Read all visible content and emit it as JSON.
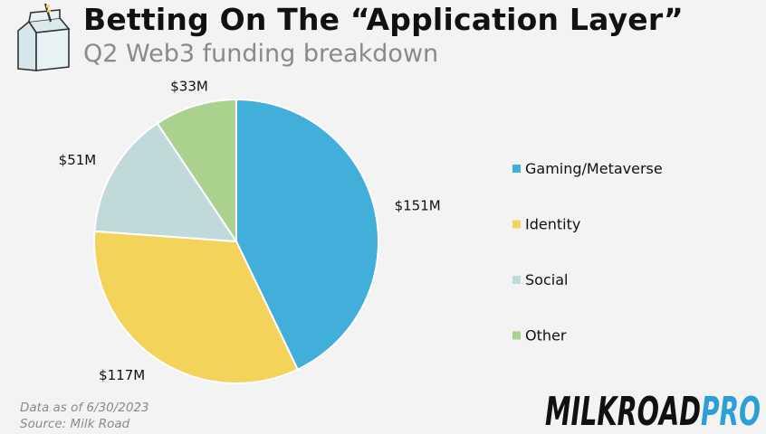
{
  "header": {
    "title": "Betting On The “Application Layer”",
    "subtitle": "Q2 Web3 funding breakdown"
  },
  "footer": {
    "date_note": "Data as of 6/30/2023",
    "source_note": "Source: Milk Road",
    "brand_main": "MILKROAD",
    "brand_suffix": "PRO"
  },
  "icons": {
    "logo": "milk-carton-icon"
  },
  "colors": {
    "background": "#f3f3f3",
    "gaming": "#42aeda",
    "identity": "#f4d35a",
    "social": "#c0dadc",
    "other": "#abd18f",
    "brand_pro": "#2b9fd6"
  },
  "chart_data": {
    "type": "pie",
    "categories": [
      "Gaming/Metaverse",
      "Identity",
      "Social",
      "Other"
    ],
    "values": [
      151,
      117,
      51,
      33
    ],
    "labels": [
      "$151M",
      "$117M",
      "$51M",
      "$33M"
    ],
    "colors": [
      "#42aeda",
      "#f4d35a",
      "#c0dadc",
      "#abd18f"
    ],
    "start": "top",
    "direction": "clockwise",
    "legend": "right"
  }
}
